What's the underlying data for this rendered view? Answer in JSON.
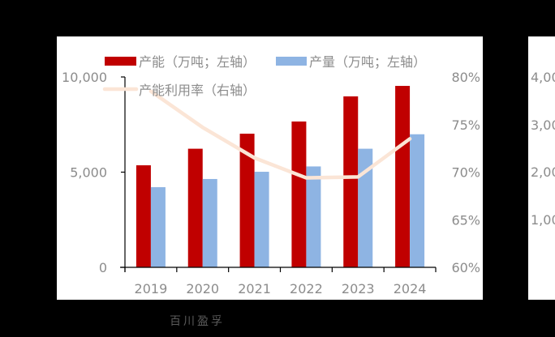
{
  "chart_data": {
    "type": "bar",
    "combo": "bar+line",
    "title": "",
    "categories": [
      "2019",
      "2020",
      "2021",
      "2022",
      "2023",
      "2024"
    ],
    "series": [
      {
        "name": "产能（万吨；左轴）",
        "type": "bar",
        "axis": "left",
        "color": "#C00000",
        "values": [
          5360,
          6230,
          7020,
          7660,
          8980,
          9530
        ]
      },
      {
        "name": "产量（万吨；左轴）",
        "type": "bar",
        "axis": "left",
        "color": "#8EB4E3",
        "values": [
          4210,
          4640,
          5020,
          5300,
          6230,
          6990
        ]
      },
      {
        "name": "产能利用率（右轴）",
        "type": "line",
        "axis": "right",
        "color": "#FBE5D6",
        "unit": "%",
        "values": [
          78.5,
          74.7,
          71.5,
          69.4,
          69.5,
          73.5
        ]
      }
    ],
    "left_axis": {
      "ylim": [
        0,
        10000
      ],
      "ticks": [
        "0",
        "5,000",
        "10,000"
      ],
      "tick_values": [
        0,
        5000,
        10000
      ]
    },
    "right_axis": {
      "ylim": [
        60,
        80
      ],
      "ticks": [
        "60%",
        "65%",
        "70%",
        "75%",
        "80%"
      ],
      "tick_values": [
        60,
        65,
        70,
        75,
        80
      ]
    },
    "xlabel": "",
    "ylabel": "",
    "grid": false,
    "legend_position": "top"
  },
  "next_chart_partial": {
    "ticks": [
      "4,00",
      "3,00",
      "2,00",
      "1,00"
    ]
  },
  "watermark": "百川盈孚"
}
